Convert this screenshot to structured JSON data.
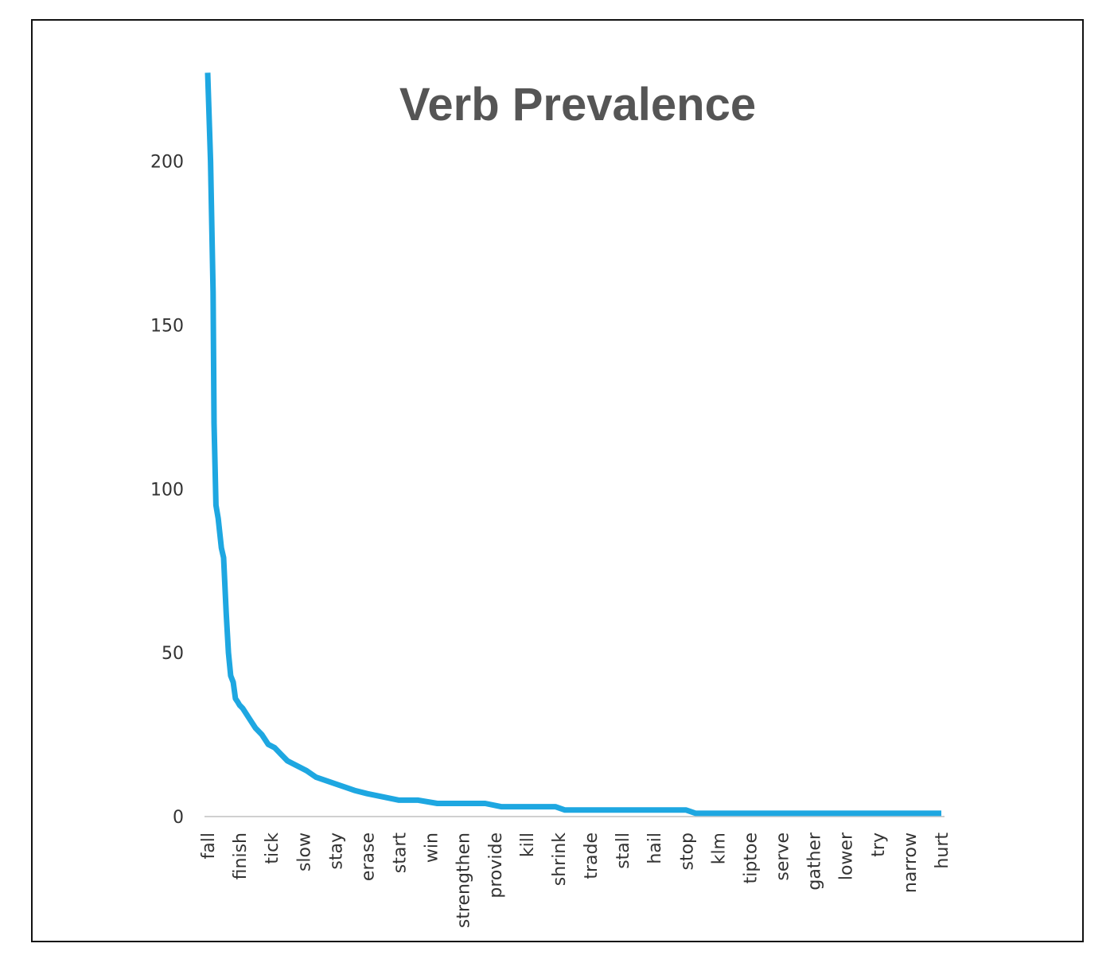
{
  "chart_data": {
    "type": "line",
    "title": "Verb Prevalence",
    "xlabel": "",
    "ylabel": "",
    "ylim": [
      0,
      230
    ],
    "yticks": [
      0,
      50,
      100,
      150,
      200
    ],
    "grid": false,
    "legend": "none",
    "line_color": "#1EA7E1",
    "axis_color": "#D0D0D0",
    "categories": [
      "fall",
      "finish",
      "tick",
      "slow",
      "stay",
      "erase",
      "start",
      "win",
      "strengthen",
      "provide",
      "kill",
      "shrink",
      "trade",
      "stall",
      "hail",
      "stop",
      "klm",
      "tiptoe",
      "serve",
      "gather",
      "lower",
      "try",
      "narrow",
      "hurt"
    ],
    "series": [
      {
        "x": [
          0,
          0.09,
          0.17,
          0.2,
          0.26,
          0.33,
          0.43,
          0.5,
          0.58,
          0.65,
          0.72,
          0.8,
          0.87,
          0.94,
          1.0,
          1.1,
          1.3,
          1.5,
          1.7,
          1.9,
          2.1,
          2.3,
          2.5,
          2.7,
          2.9,
          3.1,
          3.4,
          3.7,
          4.0,
          4.3,
          4.6,
          5.0,
          5.5,
          6.0,
          6.6,
          7.2,
          7.8,
          8.7,
          9.2,
          10.2,
          10.9,
          11.2,
          15.0,
          15.3,
          23.0
        ],
        "y": [
          227,
          200,
          160,
          120,
          95,
          91,
          82,
          79,
          62,
          50,
          43,
          41,
          36,
          35,
          34,
          33,
          30,
          27,
          25,
          22,
          21,
          19,
          17,
          16,
          15,
          14,
          12,
          11,
          10,
          9,
          8,
          7,
          6,
          5,
          5,
          4,
          4,
          4,
          3,
          3,
          3,
          2,
          2,
          1,
          1
        ]
      }
    ]
  }
}
